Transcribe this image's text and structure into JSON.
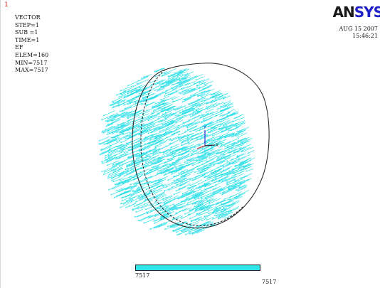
{
  "window": {
    "number": "1"
  },
  "info": {
    "lines": [
      "VECTOR",
      "STEP=1",
      "SUB =1",
      "TIME=1",
      "EF",
      "ELEM=160",
      "MIN=7517",
      "MAX=7517"
    ]
  },
  "logo": {
    "part1": "AN",
    "part2": "SYS"
  },
  "timestamp": {
    "date": "AUG 15 2007",
    "time": "15:46:21"
  },
  "triad": {
    "y_label": "Y",
    "x_label": "X",
    "z_label": "Z"
  },
  "legend": {
    "min_label": "7517",
    "max_label": "7517"
  },
  "colors": {
    "vector": "#33e0e8",
    "legend": "#2ee6ea",
    "outline": "#222222",
    "axis_y": "#2a2ad0",
    "axis_x": "#2a2a2a",
    "axis_z": "#d04040"
  }
}
